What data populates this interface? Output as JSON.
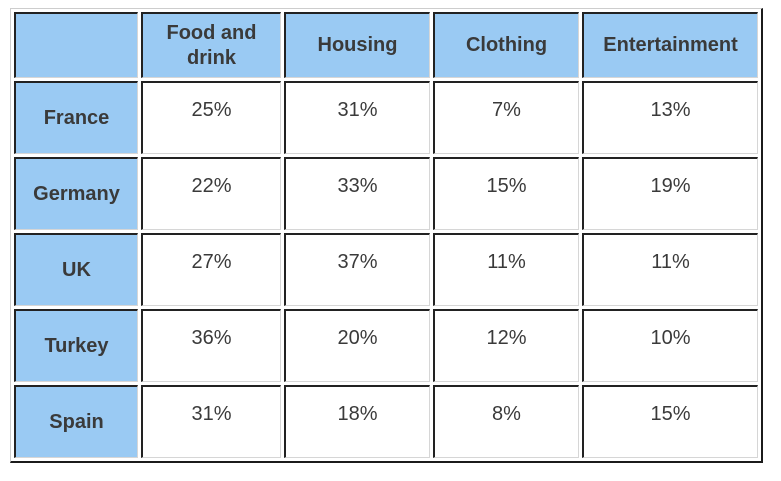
{
  "colors": {
    "header_bg": "#9ACAF3",
    "text": "#3A3A3A",
    "cell_border_dark": "#222222",
    "cell_border_light": "#D6D6D6"
  },
  "chart_data": {
    "type": "table",
    "title": "",
    "corner_label": "",
    "columns": [
      "Food and drink",
      "Housing",
      "Clothing",
      "Entertainment"
    ],
    "rows": [
      {
        "label": "France",
        "values": [
          "25%",
          "31%",
          "7%",
          "13%"
        ]
      },
      {
        "label": "Germany",
        "values": [
          "22%",
          "33%",
          "15%",
          "19%"
        ]
      },
      {
        "label": "UK",
        "values": [
          "27%",
          "37%",
          "11%",
          "11%"
        ]
      },
      {
        "label": "Turkey",
        "values": [
          "36%",
          "20%",
          "12%",
          "10%"
        ]
      },
      {
        "label": "Spain",
        "values": [
          "31%",
          "18%",
          "8%",
          "15%"
        ]
      }
    ],
    "values_numeric": {
      "France": [
        25,
        31,
        7,
        13
      ],
      "Germany": [
        22,
        33,
        15,
        19
      ],
      "UK": [
        27,
        37,
        11,
        11
      ],
      "Turkey": [
        36,
        20,
        12,
        10
      ],
      "Spain": [
        31,
        18,
        8,
        15
      ]
    },
    "unit": "percent"
  }
}
